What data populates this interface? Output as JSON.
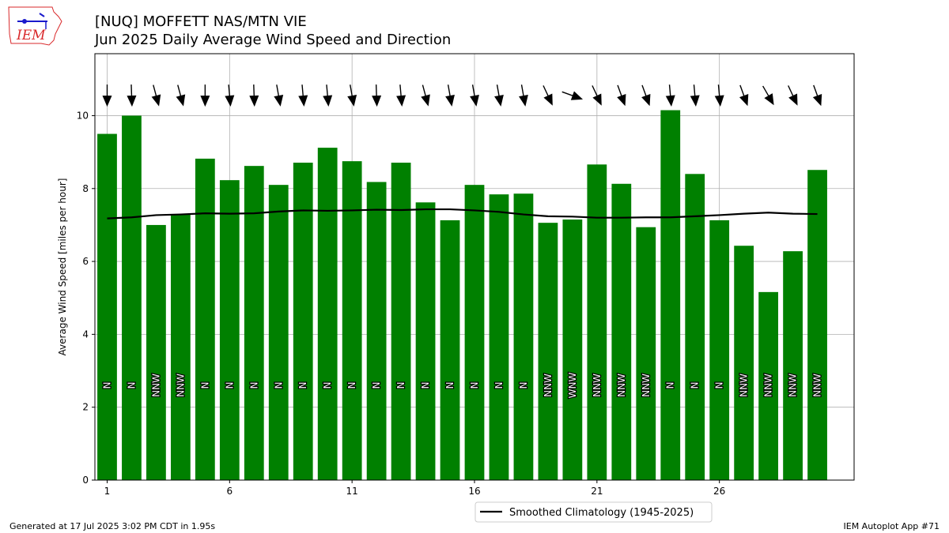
{
  "header": {
    "title_line1": "[NUQ] MOFFETT NAS/MTN VIE",
    "title_line2": "Jun 2025 Daily Average Wind Speed and Direction",
    "logo_text": "IEM"
  },
  "footer": {
    "generated": "Generated at 17 Jul 2025 3:02 PM CDT in 1.95s",
    "app": "IEM Autoplot App #71"
  },
  "colors": {
    "bar": "#008000",
    "climo_line": "#000000",
    "grid": "#b0b0b0",
    "logo_red": "#d9292b",
    "logo_blue": "#1a1acc"
  },
  "chart_data": {
    "type": "bar",
    "ylabel": "Average Wind Speed [miles per hour]",
    "xlabel": "",
    "xlim": [
      0.5,
      31.5
    ],
    "ylim": [
      0,
      11.7
    ],
    "x_ticks": [
      1,
      6,
      11,
      16,
      21,
      26
    ],
    "y_ticks": [
      0,
      2,
      4,
      6,
      8,
      10
    ],
    "grid": true,
    "days": [
      1,
      2,
      3,
      4,
      5,
      6,
      7,
      8,
      9,
      10,
      11,
      12,
      13,
      14,
      15,
      16,
      17,
      18,
      19,
      20,
      21,
      22,
      23,
      24,
      25,
      26,
      27,
      28,
      29,
      30
    ],
    "values": [
      9.5,
      10.0,
      7.0,
      7.3,
      8.82,
      8.23,
      8.62,
      8.1,
      8.71,
      9.12,
      8.75,
      8.18,
      8.71,
      7.62,
      7.13,
      8.1,
      7.84,
      7.86,
      7.06,
      7.15,
      8.66,
      8.13,
      6.94,
      10.15,
      8.4,
      7.13,
      6.43,
      5.16,
      6.28,
      8.51
    ],
    "directions": [
      "N",
      "N",
      "NNW",
      "NNW",
      "N",
      "N",
      "N",
      "N",
      "N",
      "N",
      "N",
      "N",
      "N",
      "N",
      "N",
      "N",
      "N",
      "N",
      "NNW",
      "WNW",
      "NNW",
      "NNW",
      "NNW",
      "N",
      "N",
      "N",
      "NNW",
      "NNW",
      "NNW",
      "NNW"
    ],
    "arrow_deg": [
      360,
      358,
      345,
      345,
      360,
      355,
      358,
      350,
      355,
      355,
      350,
      358,
      355,
      345,
      350,
      350,
      350,
      350,
      335,
      290,
      335,
      340,
      340,
      355,
      355,
      355,
      340,
      330,
      335,
      340
    ],
    "series": [
      {
        "name": "Smoothed Climatology (1945-2025)",
        "x": [
          1,
          2,
          3,
          4,
          5,
          6,
          7,
          8,
          9,
          10,
          11,
          12,
          13,
          14,
          15,
          16,
          17,
          18,
          19,
          20,
          21,
          22,
          23,
          24,
          25,
          26,
          27,
          28,
          29,
          30
        ],
        "values": [
          7.18,
          7.21,
          7.27,
          7.29,
          7.32,
          7.31,
          7.32,
          7.37,
          7.4,
          7.39,
          7.4,
          7.42,
          7.41,
          7.43,
          7.43,
          7.4,
          7.36,
          7.29,
          7.24,
          7.23,
          7.2,
          7.2,
          7.21,
          7.21,
          7.24,
          7.27,
          7.31,
          7.34,
          7.31,
          7.3
        ]
      }
    ],
    "legend": {
      "position": "bottom-center"
    }
  }
}
